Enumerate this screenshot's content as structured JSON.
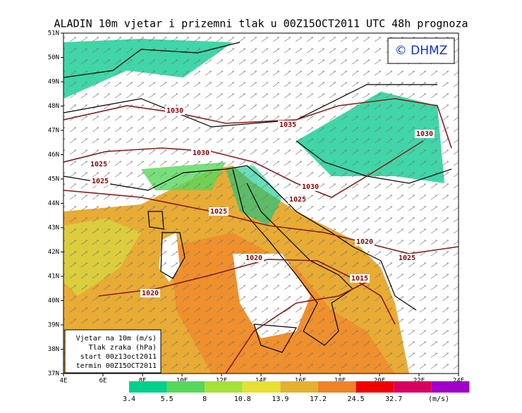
{
  "title": "ALADIN 10m vjetar i prizemni tlak u 00Z15OCT2011 UTC 48h prognoza",
  "copyright": "© DHMZ",
  "latitude_labels": [
    "51N",
    "50N",
    "49N",
    "48N",
    "47N",
    "46N",
    "45N",
    "44N",
    "43N",
    "42N",
    "41N",
    "40N",
    "39N",
    "38N",
    "37N"
  ],
  "longitude_labels": [
    "4E",
    "6E",
    "8E",
    "10E",
    "12E",
    "14E",
    "16E",
    "18E",
    "20E",
    "22E",
    "24E"
  ],
  "isobar_labels": [
    "1030",
    "1035",
    "1030",
    "1030",
    "1025",
    "1025",
    "1030",
    "1025",
    "1025",
    "1020",
    "1025",
    "1020",
    "1015",
    "1020"
  ],
  "legend_lines": [
    "Vjetar na 10m (m/s)",
    "Tlak zraka (hPa)",
    "start 00z13oct2011",
    "termin 00Z15OCT2011"
  ],
  "colorbar": {
    "unit": "(m/s)",
    "ticks": [
      "3.4",
      "5.5",
      "8",
      "10.8",
      "13.9",
      "17.2",
      "24.5",
      "32.7"
    ],
    "colors": [
      "#00d08a",
      "#55d85a",
      "#a6e03a",
      "#e6e033",
      "#e6b030",
      "#f08228",
      "#f00000",
      "#d8005e",
      "#a000c8"
    ]
  }
}
